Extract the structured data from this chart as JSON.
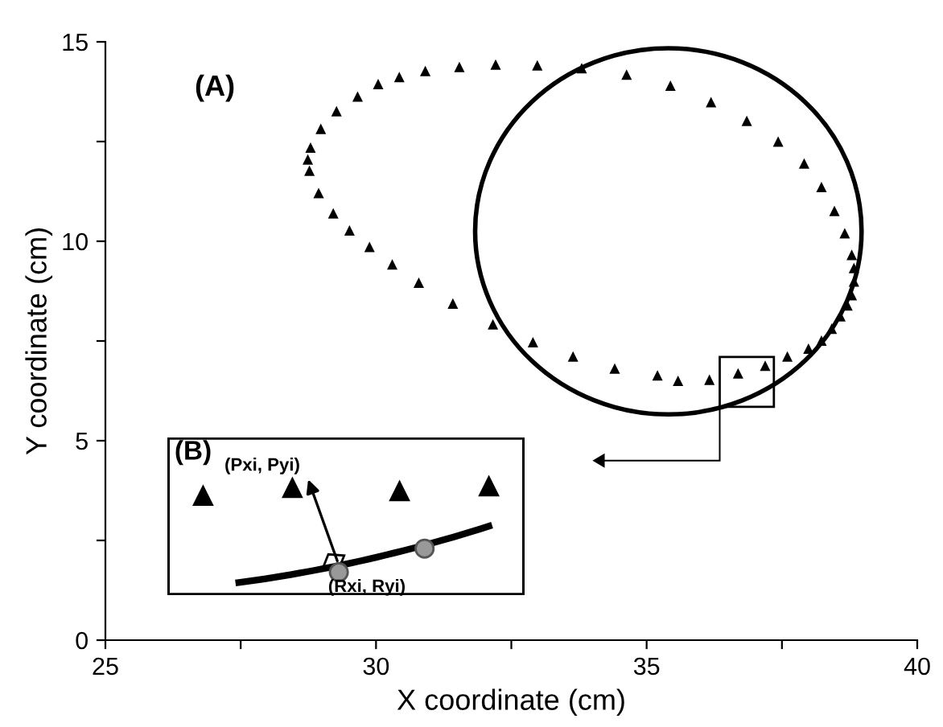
{
  "chart_data": {
    "type": "scatter",
    "xlabel": "X coordinate (cm)",
    "ylabel": "Y coordinate (cm)",
    "xlim": [
      25,
      40
    ],
    "ylim": [
      0,
      15
    ],
    "xticks": [
      25,
      {
        "value": 27.5,
        "label": null
      },
      30,
      {
        "value": 32.5,
        "label": null
      },
      35,
      {
        "value": 37.5,
        "label": null
      },
      40
    ],
    "yticks": [
      0,
      {
        "value": 2.5,
        "label": null
      },
      5,
      {
        "value": 7.5,
        "label": null
      },
      10,
      {
        "value": 12.5,
        "label": null
      },
      15
    ],
    "grid": false,
    "legend": false,
    "annotations": [
      "(A)",
      "(B)",
      "(Pxi, Pyi)",
      "(Rxi, Ryi)"
    ],
    "series": [
      {
        "color": "#000000",
        "marker": "triangle",
        "x": [
          31.54,
          32.21,
          32.98,
          33.8,
          34.63,
          35.44,
          36.19,
          36.85,
          37.43,
          37.91,
          38.23,
          38.47,
          38.66,
          38.79,
          38.83,
          38.83,
          38.79,
          38.71,
          38.58,
          38.42,
          38.23,
          37.99,
          37.6,
          37.19,
          36.69,
          36.16,
          35.58,
          35.2,
          34.41,
          33.64,
          32.9,
          32.16,
          31.42,
          30.79,
          30.3,
          29.88,
          29.51,
          29.21,
          28.94,
          28.77,
          28.74,
          28.79,
          28.98,
          29.27,
          29.66,
          30.04,
          30.43,
          30.91
        ],
        "values": [
          14.37,
          14.43,
          14.41,
          14.34,
          14.18,
          13.9,
          13.49,
          13.02,
          12.5,
          11.95,
          11.36,
          10.76,
          10.2,
          9.66,
          9.33,
          8.99,
          8.65,
          8.39,
          8.12,
          7.81,
          7.51,
          7.31,
          7.11,
          6.88,
          6.69,
          6.53,
          6.5,
          6.64,
          6.81,
          7.11,
          7.47,
          7.92,
          8.44,
          8.96,
          9.42,
          9.86,
          10.27,
          10.7,
          11.21,
          11.77,
          12.05,
          12.35,
          12.82,
          13.26,
          13.63,
          13.94,
          14.12,
          14.27
        ]
      }
    ]
  }
}
